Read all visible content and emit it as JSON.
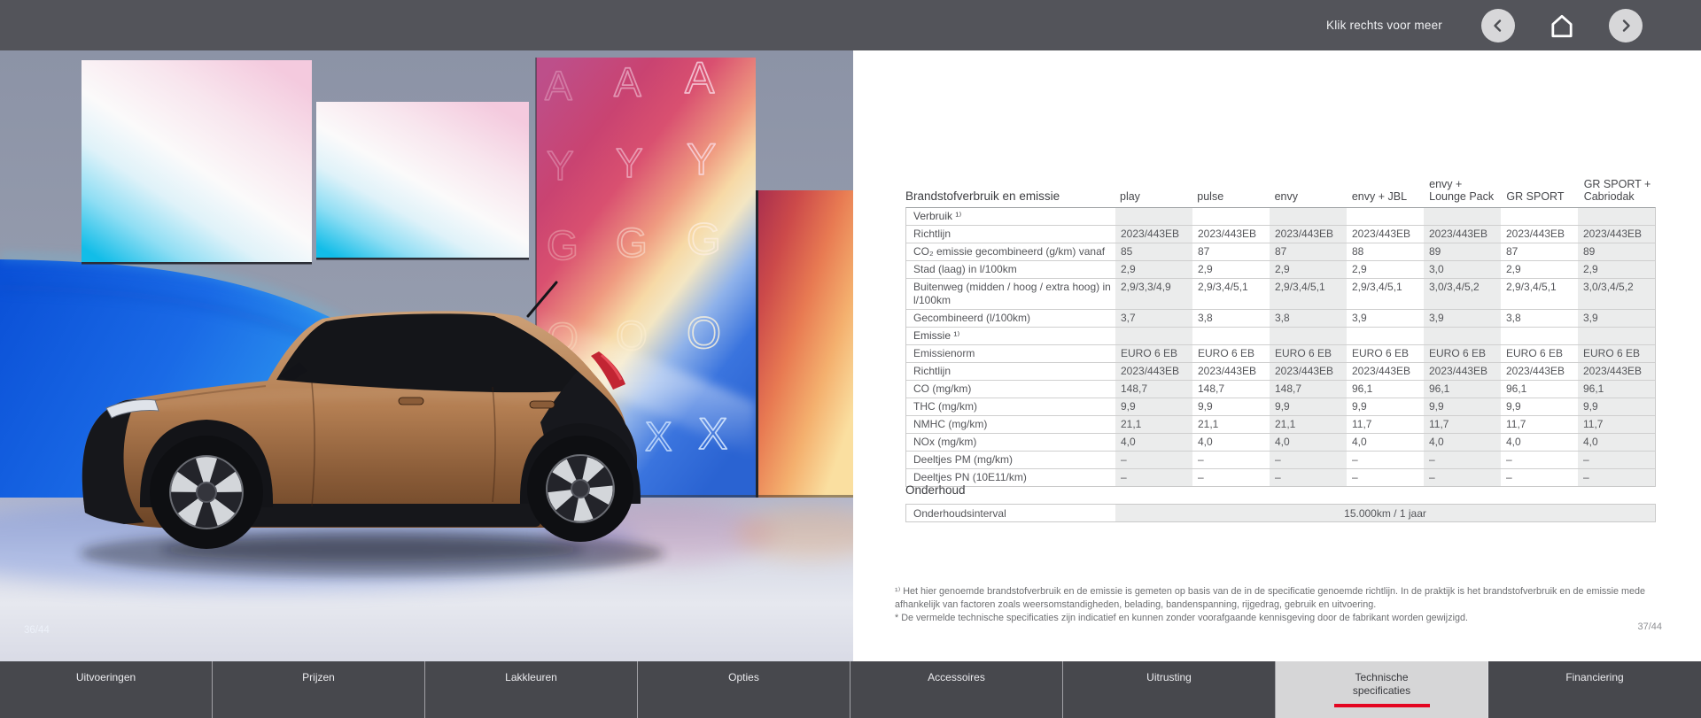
{
  "top_bar": {
    "hint": "Klik rechts voor meer"
  },
  "theme": {
    "accent_red": "#e40521"
  },
  "photo": {
    "page_number": "36/44",
    "backdrop_letters": [
      "A",
      "Y",
      "G",
      "O",
      "X"
    ],
    "accents": {
      "wave_blue": "#1a63e2",
      "panel_pink": "#cc4871",
      "panel_orange": "#ef8b5a",
      "car_copper": "#b37e52"
    }
  },
  "specs": {
    "page_number": "37/44",
    "table": {
      "corner_label": "Brandstofverbruik en emissie",
      "columns": [
        "play",
        "pulse",
        "envy",
        "envy + JBL",
        "envy +\nLounge Pack",
        "GR SPORT",
        "GR SPORT +\nCabriodak"
      ],
      "rows": [
        {
          "type": "section",
          "label": "Verbruik ¹⁾",
          "values": [
            "",
            "",
            "",
            "",
            "",
            "",
            ""
          ]
        },
        {
          "type": "data",
          "label": "Richtlijn",
          "values": [
            "2023/443EB",
            "2023/443EB",
            "2023/443EB",
            "2023/443EB",
            "2023/443EB",
            "2023/443EB",
            "2023/443EB"
          ]
        },
        {
          "type": "data",
          "label": "CO₂ emissie gecombineerd (g/km) vanaf",
          "values": [
            "85",
            "87",
            "87",
            "88",
            "89",
            "87",
            "89"
          ]
        },
        {
          "type": "data",
          "label": "Stad (laag) in l/100km",
          "values": [
            "2,9",
            "2,9",
            "2,9",
            "2,9",
            "3,0",
            "2,9",
            "2,9"
          ]
        },
        {
          "type": "data",
          "label": "Buitenweg (midden / hoog / extra hoog) in l/100km",
          "values": [
            "2,9/3,3/4,9",
            "2,9/3,4/5,1",
            "2,9/3,4/5,1",
            "2,9/3,4/5,1",
            "3,0/3,4/5,2",
            "2,9/3,4/5,1",
            "3,0/3,4/5,2"
          ]
        },
        {
          "type": "data",
          "label": "Gecombineerd (l/100km)",
          "values": [
            "3,7",
            "3,8",
            "3,8",
            "3,9",
            "3,9",
            "3,8",
            "3,9"
          ]
        },
        {
          "type": "section",
          "label": "Emissie ¹⁾",
          "values": [
            "",
            "",
            "",
            "",
            "",
            "",
            ""
          ]
        },
        {
          "type": "data",
          "label": "Emissienorm",
          "values": [
            "EURO 6 EB",
            "EURO 6 EB",
            "EURO 6 EB",
            "EURO 6 EB",
            "EURO 6 EB",
            "EURO 6 EB",
            "EURO 6 EB"
          ]
        },
        {
          "type": "data",
          "label": "Richtlijn",
          "values": [
            "2023/443EB",
            "2023/443EB",
            "2023/443EB",
            "2023/443EB",
            "2023/443EB",
            "2023/443EB",
            "2023/443EB"
          ]
        },
        {
          "type": "data",
          "label": "CO (mg/km)",
          "values": [
            "148,7",
            "148,7",
            "148,7",
            "96,1",
            "96,1",
            "96,1",
            "96,1"
          ]
        },
        {
          "type": "data",
          "label": "THC (mg/km)",
          "values": [
            "9,9",
            "9,9",
            "9,9",
            "9,9",
            "9,9",
            "9,9",
            "9,9"
          ]
        },
        {
          "type": "data",
          "label": "NMHC (mg/km)",
          "values": [
            "21,1",
            "21,1",
            "21,1",
            "11,7",
            "11,7",
            "11,7",
            "11,7"
          ]
        },
        {
          "type": "data",
          "label": "NOx (mg/km)",
          "values": [
            "4,0",
            "4,0",
            "4,0",
            "4,0",
            "4,0",
            "4,0",
            "4,0"
          ]
        },
        {
          "type": "data",
          "label": "Deeltjes PM (mg/km)",
          "values": [
            "–",
            "–",
            "–",
            "–",
            "–",
            "–",
            "–"
          ]
        },
        {
          "type": "data",
          "label": "Deeltjes PN (10E11/km)",
          "values": [
            "–",
            "–",
            "–",
            "–",
            "–",
            "–",
            "–"
          ]
        }
      ]
    },
    "maintenance": {
      "heading": "Onderhoud",
      "label": "Onderhoudsinterval",
      "value": "15.000km / 1 jaar"
    },
    "footnote_1": "¹⁾ Het hier genoemde brandstofverbruik en de emissie is gemeten op basis van de in de specificatie genoemde richtlijn. In de praktijk is het brandstofverbruik en de emissie mede afhankelijk van factoren zoals weersomstandigheden, belading, bandenspanning, rijgedrag, gebruik en uitvoering.",
    "footnote_2": "* De vermelde technische specificaties zijn indicatief en kunnen zonder voorafgaande kennisgeving door de fabrikant worden gewijzigd."
  },
  "bottom_nav": {
    "tabs": [
      {
        "label": "Uitvoeringen",
        "active": false
      },
      {
        "label": "Prijzen",
        "active": false
      },
      {
        "label": "Lakkleuren",
        "active": false
      },
      {
        "label": "Opties",
        "active": false
      },
      {
        "label": "Accessoires",
        "active": false
      },
      {
        "label": "Uitrusting",
        "active": false
      },
      {
        "label": "Technische\nspecificaties",
        "active": true
      },
      {
        "label": "Financiering",
        "active": false
      }
    ]
  }
}
